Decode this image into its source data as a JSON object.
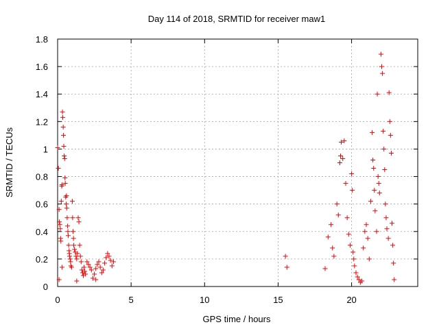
{
  "chart_data": {
    "type": "scatter",
    "title": "Day 114 of 2018, SRMTID for receiver maw1",
    "xlabel": "GPS time / hours",
    "ylabel": "SRMTID / TECUs",
    "xlim": [
      0,
      24.5
    ],
    "ylim": [
      0,
      1.8
    ],
    "xticks": [
      "0",
      "5",
      "10",
      "15",
      "20"
    ],
    "yticks": [
      "0",
      "0.2",
      "0.4",
      "0.6",
      "0.8",
      "1",
      "1.2",
      "1.4",
      "1.6",
      "1.8"
    ],
    "grid": true,
    "marker": "plus",
    "color": "#ee0000",
    "series": [
      {
        "name": "maw1",
        "points": [
          [
            0.0,
            1.01
          ],
          [
            0.05,
            0.86
          ],
          [
            0.1,
            0.56
          ],
          [
            0.12,
            0.47
          ],
          [
            0.15,
            0.45
          ],
          [
            0.18,
            0.42
          ],
          [
            0.2,
            0.35
          ],
          [
            0.22,
            0.33
          ],
          [
            0.25,
            0.62
          ],
          [
            0.28,
            0.73
          ],
          [
            0.3,
            0.74
          ],
          [
            0.33,
            1.27
          ],
          [
            0.35,
            1.23
          ],
          [
            0.38,
            1.16
          ],
          [
            0.4,
            1.1
          ],
          [
            0.42,
            1.02
          ],
          [
            0.45,
            0.95
          ],
          [
            0.48,
            0.93
          ],
          [
            0.5,
            0.79
          ],
          [
            0.52,
            0.75
          ],
          [
            0.55,
            0.65
          ],
          [
            0.58,
            0.6
          ],
          [
            0.6,
            0.66
          ],
          [
            0.62,
            0.57
          ],
          [
            0.65,
            0.5
          ],
          [
            0.68,
            0.44
          ],
          [
            0.7,
            0.4
          ],
          [
            0.72,
            0.37
          ],
          [
            0.75,
            0.3
          ],
          [
            0.78,
            0.26
          ],
          [
            0.8,
            0.24
          ],
          [
            0.82,
            0.22
          ],
          [
            0.85,
            0.2
          ],
          [
            0.88,
            0.18
          ],
          [
            0.9,
            0.15
          ],
          [
            0.95,
            0.14
          ],
          [
            1.0,
            0.62
          ],
          [
            1.02,
            0.5
          ],
          [
            1.05,
            0.4
          ],
          [
            1.08,
            0.35
          ],
          [
            1.1,
            0.3
          ],
          [
            1.15,
            0.27
          ],
          [
            1.2,
            0.25
          ],
          [
            1.25,
            0.22
          ],
          [
            1.3,
            0.2
          ],
          [
            1.35,
            0.24
          ],
          [
            1.4,
            0.5
          ],
          [
            1.45,
            0.47
          ],
          [
            1.5,
            0.3
          ],
          [
            1.55,
            0.22
          ],
          [
            1.6,
            0.18
          ],
          [
            1.65,
            0.12
          ],
          [
            1.7,
            0.1
          ],
          [
            1.75,
            0.08
          ],
          [
            1.8,
            0.14
          ],
          [
            1.85,
            0.11
          ],
          [
            1.9,
            0.09
          ],
          [
            2.0,
            0.18
          ],
          [
            2.1,
            0.16
          ],
          [
            2.2,
            0.14
          ],
          [
            2.3,
            0.12
          ],
          [
            2.4,
            0.06
          ],
          [
            2.5,
            0.09
          ],
          [
            2.6,
            0.13
          ],
          [
            2.7,
            0.16
          ],
          [
            2.8,
            0.18
          ],
          [
            2.9,
            0.14
          ],
          [
            3.0,
            0.1
          ],
          [
            3.1,
            0.12
          ],
          [
            3.2,
            0.17
          ],
          [
            3.3,
            0.21
          ],
          [
            3.4,
            0.24
          ],
          [
            3.5,
            0.22
          ],
          [
            3.6,
            0.19
          ],
          [
            3.7,
            0.15
          ],
          [
            3.8,
            0.18
          ],
          [
            0.1,
            0.05
          ],
          [
            0.3,
            0.14
          ],
          [
            1.3,
            0.04
          ],
          [
            2.6,
            0.05
          ],
          [
            15.5,
            0.22
          ],
          [
            15.6,
            0.14
          ],
          [
            18.2,
            0.13
          ],
          [
            18.4,
            0.36
          ],
          [
            18.6,
            0.45
          ],
          [
            18.7,
            0.28
          ],
          [
            18.8,
            0.22
          ],
          [
            19.0,
            0.6
          ],
          [
            19.1,
            0.52
          ],
          [
            19.2,
            0.9
          ],
          [
            19.25,
            0.95
          ],
          [
            19.3,
            1.05
          ],
          [
            19.4,
            0.93
          ],
          [
            19.5,
            1.06
          ],
          [
            19.6,
            0.75
          ],
          [
            19.7,
            0.5
          ],
          [
            19.8,
            0.38
          ],
          [
            19.9,
            0.3
          ],
          [
            20.0,
            0.82
          ],
          [
            20.05,
            0.7
          ],
          [
            20.1,
            0.25
          ],
          [
            20.15,
            0.2
          ],
          [
            20.2,
            0.15
          ],
          [
            20.3,
            0.1
          ],
          [
            20.4,
            0.07
          ],
          [
            20.5,
            0.05
          ],
          [
            20.6,
            0.03
          ],
          [
            20.7,
            0.04
          ],
          [
            20.8,
            0.28
          ],
          [
            20.9,
            0.4
          ],
          [
            21.0,
            0.45
          ],
          [
            21.1,
            0.35
          ],
          [
            21.2,
            0.2
          ],
          [
            21.3,
            0.62
          ],
          [
            21.4,
            1.12
          ],
          [
            21.45,
            0.92
          ],
          [
            21.5,
            0.86
          ],
          [
            21.55,
            0.7
          ],
          [
            21.6,
            0.55
          ],
          [
            21.7,
            0.4
          ],
          [
            21.75,
            1.4
          ],
          [
            21.8,
            0.8
          ],
          [
            21.85,
            0.75
          ],
          [
            21.9,
            0.68
          ],
          [
            22.0,
            1.69
          ],
          [
            22.05,
            1.6
          ],
          [
            22.1,
            1.55
          ],
          [
            22.15,
            1.13
          ],
          [
            22.2,
            1.0
          ],
          [
            22.25,
            0.85
          ],
          [
            22.3,
            0.6
          ],
          [
            22.35,
            0.5
          ],
          [
            22.4,
            0.42
          ],
          [
            22.5,
            0.35
          ],
          [
            22.55,
            1.41
          ],
          [
            22.6,
            1.2
          ],
          [
            22.65,
            1.1
          ],
          [
            22.7,
            0.97
          ],
          [
            22.75,
            0.46
          ],
          [
            22.8,
            0.3
          ],
          [
            22.85,
            0.17
          ],
          [
            22.9,
            0.05
          ]
        ]
      }
    ]
  }
}
